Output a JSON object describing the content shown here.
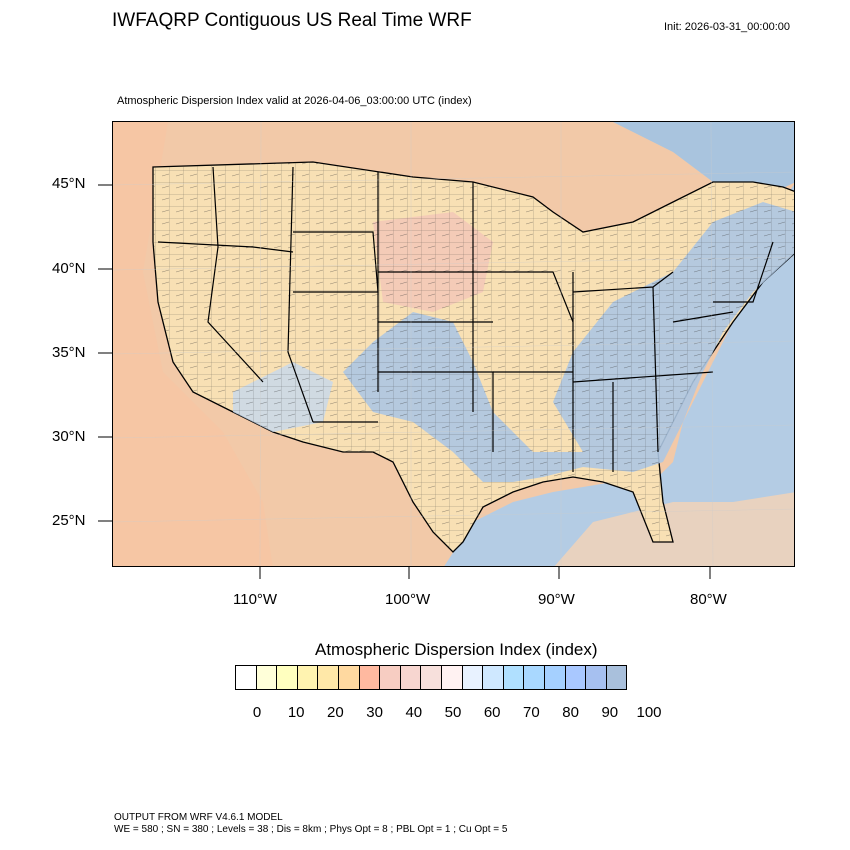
{
  "header": {
    "title": "IWFAQRP Contiguous US Real Time WRF",
    "init": "Init: 2026-03-31_00:00:00",
    "subtitle": "Atmospheric Dispersion Index valid at 2026-04-06_03:00:00 UTC   (index)"
  },
  "map": {
    "lat_labels": [
      "45°N",
      "40°N",
      "35°N",
      "30°N",
      "25°N"
    ],
    "lon_labels": [
      "110°W",
      "100°W",
      "90°W",
      "80°W"
    ],
    "ocean_color": "#a9c4de",
    "land_base_color": "#f4d0ad",
    "boundary_color": "#000000"
  },
  "colorbar": {
    "title": "Atmospheric Dispersion Index  (index)",
    "colors": [
      "#ffffff",
      "#ffffd9",
      "#ffffbf",
      "#fff3b0",
      "#ffe8a8",
      "#ffd9a0",
      "#ffb9a0",
      "#f7cdc2",
      "#f7d6d0",
      "#f7e0dc",
      "#fff2f2",
      "#e8f2ff",
      "#cfe8ff",
      "#b0e0ff",
      "#a9d8ff",
      "#a5d0ff",
      "#a9c8ff",
      "#a6c0f0",
      "#a9c0dc"
    ],
    "tick_labels": [
      "0",
      "10",
      "20",
      "30",
      "40",
      "50",
      "60",
      "70",
      "80",
      "90",
      "100"
    ]
  },
  "footer": {
    "line1": "OUTPUT FROM WRF V4.6.1 MODEL",
    "line2": "WE = 580 ; SN = 380 ; Levels = 38 ; Dis = 8km ; Phys Opt = 8 ; PBL Opt = 1 ; Cu Opt = 5"
  }
}
